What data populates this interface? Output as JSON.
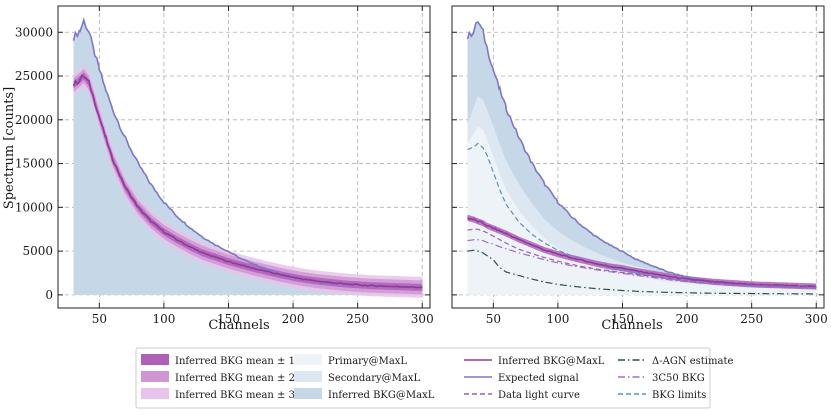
{
  "chart_data": [
    {
      "type": "area",
      "panel": "left",
      "xlabel": "Channels",
      "ylabel": "Spectrum [counts]",
      "xlim": [
        18,
        306
      ],
      "ylim": [
        -1500,
        33000
      ],
      "xticks": [
        50,
        100,
        150,
        200,
        250,
        300
      ],
      "yticks": [
        0,
        5000,
        10000,
        15000,
        20000,
        25000,
        30000
      ],
      "xtick_labels": [
        "50",
        "100",
        "150",
        "200",
        "250",
        "300"
      ],
      "ytick_labels": [
        "0",
        "5000",
        "10000",
        "15000",
        "20000",
        "25000",
        "30000"
      ],
      "grid": true,
      "x": [
        30,
        35,
        38,
        42,
        45,
        50,
        55,
        60,
        70,
        80,
        90,
        100,
        110,
        120,
        130,
        140,
        150,
        160,
        170,
        180,
        190,
        200,
        210,
        220,
        230,
        240,
        250,
        260,
        270,
        280,
        290,
        300
      ],
      "series": [
        {
          "name": "Primary@MaxL",
          "kind": "band",
          "color": "#eef3f8",
          "values": [
            4800,
            5000,
            5100,
            5050,
            4950,
            4700,
            4450,
            4200,
            3750,
            3300,
            2900,
            2500,
            2150,
            1850,
            1550,
            1300,
            1100,
            900,
            750,
            620,
            520,
            430,
            360,
            300,
            250,
            210,
            180,
            150,
            130,
            110,
            95,
            85
          ]
        },
        {
          "name": "Secondary@MaxL",
          "kind": "band",
          "color": "#dde7f1",
          "values": [
            5800,
            6200,
            6500,
            6700,
            6600,
            6400,
            6000,
            5600,
            5000,
            4500,
            4000,
            3500,
            3050,
            2650,
            2300,
            1950,
            1700,
            1450,
            1250,
            1050,
            900,
            780,
            680,
            600,
            530,
            480,
            440,
            410,
            380,
            360,
            340,
            330
          ]
        },
        {
          "name": "Inferred BKG@MaxL",
          "kind": "band",
          "color": "#c6d7e8",
          "values": [
            29400,
            30200,
            31300,
            30000,
            28300,
            25700,
            23400,
            21300,
            17900,
            15000,
            12600,
            10600,
            9000,
            7700,
            6600,
            5700,
            4950,
            4100,
            3500,
            2900,
            2400,
            2050,
            1750,
            1500,
            1300,
            1200,
            1100,
            1050,
            1000,
            950,
            920,
            900
          ]
        },
        {
          "name": "Expected signal",
          "kind": "line",
          "color": "#7b78c9",
          "values": [
            29400,
            30200,
            31300,
            30000,
            28300,
            25700,
            23400,
            21300,
            17900,
            15000,
            12600,
            10600,
            9000,
            7700,
            6600,
            5700,
            4950,
            4100,
            3500,
            2900,
            2400,
            2050,
            1750,
            1500,
            1300,
            1200,
            1100,
            1050,
            1000,
            950,
            920,
            900
          ]
        },
        {
          "name": "Inferred BKG@MaxL",
          "kind": "line",
          "color": "#8e3b9a",
          "values": [
            24000,
            24600,
            25000,
            24200,
            22800,
            20300,
            17900,
            15600,
            12300,
            10000,
            8400,
            7200,
            6300,
            5500,
            4800,
            4300,
            3800,
            3400,
            3000,
            2650,
            2300,
            2000,
            1750,
            1550,
            1400,
            1250,
            1150,
            1050,
            1000,
            950,
            900,
            850
          ]
        },
        {
          "name": "Inferred BKG mean ± 1σ",
          "kind": "uncertainty",
          "color": "#b05fb8",
          "spread": 400
        },
        {
          "name": "Inferred BKG mean ± 2σ",
          "kind": "uncertainty",
          "color": "#cf96d3",
          "spread": 800
        },
        {
          "name": "Inferred BKG mean ± 3σ",
          "kind": "uncertainty",
          "color": "#e8c3ea",
          "spread": 1200
        }
      ]
    },
    {
      "type": "area",
      "panel": "right",
      "xlabel": "Channels",
      "ylabel": "",
      "xlim": [
        18,
        306
      ],
      "ylim": [
        -1500,
        33000
      ],
      "xticks": [
        50,
        100,
        150,
        200,
        250,
        300
      ],
      "xtick_labels": [
        "50",
        "100",
        "150",
        "200",
        "250",
        "300"
      ],
      "grid": true,
      "x": [
        30,
        35,
        38,
        42,
        45,
        50,
        55,
        60,
        70,
        80,
        90,
        100,
        110,
        120,
        130,
        140,
        150,
        160,
        170,
        180,
        190,
        200,
        210,
        220,
        230,
        240,
        250,
        260,
        270,
        280,
        290,
        300
      ],
      "series": [
        {
          "name": "Inferred BKG@MaxL",
          "kind": "band",
          "color": "#c6d7e8",
          "values": [
            29400,
            30200,
            31300,
            30000,
            28300,
            25700,
            23400,
            21300,
            17900,
            15000,
            12600,
            10600,
            9000,
            7700,
            6600,
            5700,
            4950,
            4100,
            3500,
            2900,
            2400,
            2050,
            1750,
            1500,
            1300,
            1200,
            1100,
            1050,
            1000,
            950,
            920,
            900
          ]
        },
        {
          "name": "Secondary@MaxL",
          "kind": "band",
          "color": "#dde7f1",
          "values": [
            19500,
            21500,
            22700,
            22300,
            21200,
            19300,
            17200,
            15300,
            12600,
            10400,
            8600,
            7300,
            6300,
            5500,
            4800,
            4200,
            3700,
            3300,
            2900,
            2550,
            2250,
            2000,
            1800,
            1600,
            1450,
            1350,
            1250,
            1150,
            1100,
            1050,
            1000,
            950
          ]
        },
        {
          "name": "Primary@MaxL",
          "kind": "band",
          "color": "#eef3f8",
          "values": [
            17300,
            18500,
            19300,
            18800,
            17800,
            15800,
            13800,
            12000,
            9600,
            7800,
            6400,
            5300,
            4500,
            3800,
            3300,
            2800,
            2450,
            2150,
            1900,
            1650,
            1450,
            1300,
            1150,
            1050,
            950,
            880,
            820,
            770,
            730,
            700,
            680,
            660
          ]
        },
        {
          "name": "BKG limits",
          "kind": "line",
          "style": "dashed",
          "color": "#5a8fc0",
          "values": [
            16600,
            16900,
            17300,
            16800,
            16000,
            14000,
            12000,
            10300,
            8300,
            6900,
            5900,
            5100,
            4500,
            3950,
            3500,
            3100,
            2800,
            2500,
            2250,
            2000,
            1800,
            1600,
            1450,
            1300,
            1200,
            1100,
            1000,
            950,
            900,
            850,
            800,
            750
          ]
        },
        {
          "name": "Expected signal",
          "kind": "line",
          "color": "#7b78c9",
          "values": [
            29400,
            30200,
            31300,
            30000,
            28300,
            25700,
            23400,
            21300,
            17900,
            15000,
            12600,
            10600,
            9000,
            7700,
            6600,
            5700,
            4950,
            4100,
            3500,
            2900,
            2400,
            2050,
            1750,
            1500,
            1300,
            1200,
            1100,
            1050,
            1000,
            950,
            920,
            900
          ]
        },
        {
          "name": "Inferred BKG@MaxL",
          "kind": "line",
          "color": "#8e3b9a",
          "values": [
            8800,
            8600,
            8400,
            8200,
            7900,
            7600,
            7300,
            7000,
            6300,
            5700,
            5100,
            4650,
            4250,
            3900,
            3550,
            3250,
            3050,
            2750,
            2500,
            2250,
            2000,
            1800,
            1650,
            1500,
            1400,
            1300,
            1200,
            1150,
            1100,
            1050,
            1000,
            950
          ]
        },
        {
          "name": "Data light curve",
          "kind": "line",
          "style": "dashed",
          "color": "#9b62ad",
          "values": [
            7400,
            7500,
            7500,
            7300,
            7100,
            6700,
            6300,
            5900,
            5200,
            4700,
            4250,
            3850,
            3500,
            3200,
            2950,
            2750,
            2550,
            2350,
            2150,
            1950,
            1750,
            1600,
            1450,
            1350,
            1250,
            1150,
            1100,
            1050,
            1000,
            950,
            900,
            850
          ]
        },
        {
          "name": "3C50 BKG",
          "kind": "line",
          "style": "dashdot",
          "color": "#a06cc0",
          "values": [
            6200,
            6300,
            6300,
            6200,
            6000,
            5800,
            5500,
            5250,
            4800,
            4400,
            4000,
            3650,
            3350,
            3100,
            2850,
            2650,
            2450,
            2250,
            2050,
            1850,
            1650,
            1500,
            1350,
            1250,
            1150,
            1050,
            1000,
            950,
            900,
            850,
            800,
            780
          ]
        },
        {
          "name": "Δ-AGN estimate",
          "kind": "line",
          "style": "dashdot",
          "color": "#2f4f47",
          "values": [
            5000,
            5100,
            5000,
            4800,
            4500,
            4000,
            3100,
            2600,
            2200,
            1800,
            1450,
            1200,
            1000,
            850,
            700,
            600,
            500,
            420,
            360,
            310,
            270,
            240,
            210,
            190,
            170,
            160,
            150,
            140,
            130,
            120,
            110,
            100
          ]
        },
        {
          "name": "Inferred BKG mean ± 1σ",
          "kind": "uncertainty",
          "color": "#b05fb8",
          "spread": 350
        }
      ]
    }
  ],
  "legend": {
    "placement": "bottom-center",
    "col1": [
      {
        "label": "Inferred BKG mean ± 1σ",
        "kind": "patch",
        "color": "#b05fb8"
      },
      {
        "label": "Inferred BKG mean ± 2σ",
        "kind": "patch",
        "color": "#cf96d3"
      },
      {
        "label": "Inferred BKG mean ± 3σ",
        "kind": "patch",
        "color": "#e8c3ea"
      }
    ],
    "col2": [
      {
        "label": "Primary@MaxL",
        "kind": "patch",
        "color": "#eef3f8"
      },
      {
        "label": "Secondary@MaxL",
        "kind": "patch",
        "color": "#dde7f1"
      },
      {
        "label": "Inferred BKG@MaxL",
        "kind": "patch",
        "color": "#c6d7e8"
      }
    ],
    "col3": [
      {
        "label": "Inferred BKG@MaxL",
        "kind": "line",
        "style": "solid",
        "color": "#8e3b9a"
      },
      {
        "label": "Expected signal",
        "kind": "line",
        "style": "solid",
        "color": "#7b78c9"
      },
      {
        "label": "Data light curve",
        "kind": "line",
        "style": "dashed",
        "color": "#9b62ad"
      }
    ],
    "col4": [
      {
        "label": "Δ-AGN estimate",
        "kind": "line",
        "style": "dashdot",
        "color": "#2f4f47"
      },
      {
        "label": "3C50 BKG",
        "kind": "line",
        "style": "dashdot",
        "color": "#a06cc0"
      },
      {
        "label": "BKG limits",
        "kind": "line",
        "style": "dashed",
        "color": "#5a8fc0"
      }
    ]
  }
}
